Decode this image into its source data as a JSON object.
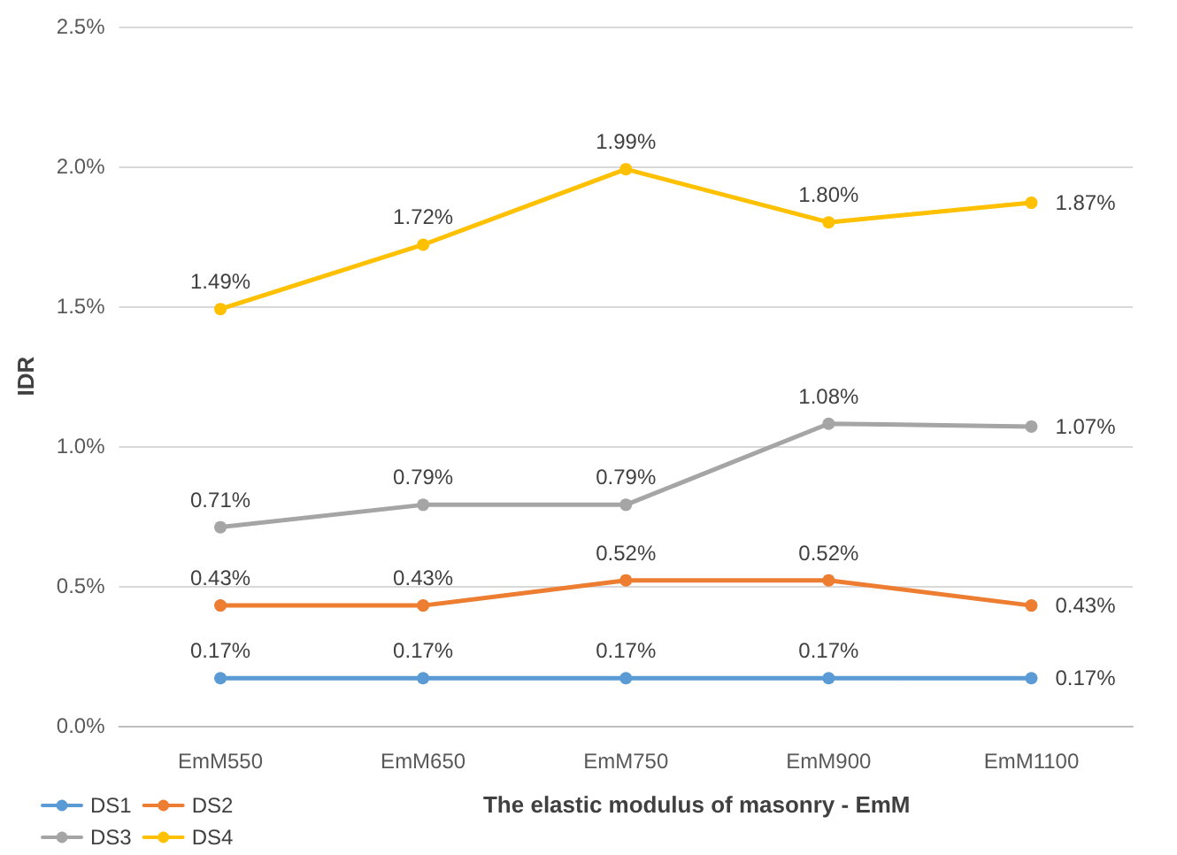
{
  "chart_data": {
    "type": "line",
    "xlabel": "The elastic modulus of masonry - EmM",
    "ylabel": "IDR",
    "categories": [
      "EmM550",
      "EmM650",
      "EmM750",
      "EmM900",
      "EmM1100"
    ],
    "series": [
      {
        "name": "DS1",
        "color": "#5b9bd5",
        "values": [
          0.17,
          0.17,
          0.17,
          0.17,
          0.17
        ],
        "value_labels": [
          "0.17%",
          "0.17%",
          "0.17%",
          "0.17%",
          "0.17%"
        ]
      },
      {
        "name": "DS2",
        "color": "#ed7d31",
        "values": [
          0.43,
          0.43,
          0.52,
          0.52,
          0.43
        ],
        "value_labels": [
          "0.43%",
          "0.43%",
          "0.52%",
          "0.52%",
          "0.43%"
        ]
      },
      {
        "name": "DS3",
        "color": "#a5a5a5",
        "values": [
          0.71,
          0.79,
          0.79,
          1.08,
          1.07
        ],
        "value_labels": [
          "0.71%",
          "0.79%",
          "0.79%",
          "1.08%",
          "1.07%"
        ]
      },
      {
        "name": "DS4",
        "color": "#ffc000",
        "values": [
          1.49,
          1.72,
          1.99,
          1.8,
          1.87
        ],
        "value_labels": [
          "1.49%",
          "1.72%",
          "1.99%",
          "1.80%",
          "1.87%"
        ]
      }
    ],
    "ylim": [
      0,
      2.5
    ],
    "yticks": [
      {
        "value": 0,
        "label": "0.0%"
      },
      {
        "value": 0.5,
        "label": "0.5%"
      },
      {
        "value": 1,
        "label": "1.0%"
      },
      {
        "value": 1.5,
        "label": "1.5%"
      },
      {
        "value": 2,
        "label": "2.0%"
      },
      {
        "value": 2.5,
        "label": "2.5%"
      }
    ],
    "grid": "y",
    "legend": "bottom left",
    "marker": "circle",
    "line_style": "solid"
  }
}
